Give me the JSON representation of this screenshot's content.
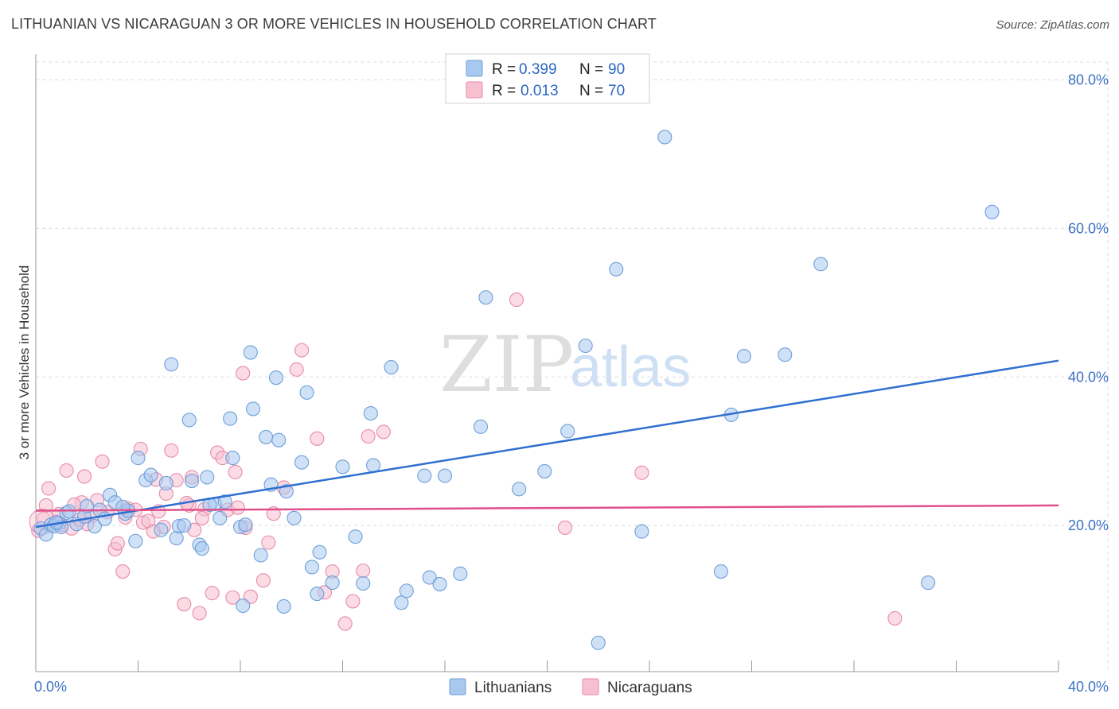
{
  "title": "LITHUANIAN VS NICARAGUAN 3 OR MORE VEHICLES IN HOUSEHOLD CORRELATION CHART",
  "source": "Source: ZipAtlas.com",
  "watermark": {
    "zip": "ZIP",
    "atlas": "atlas"
  },
  "stats": [
    {
      "r_label": "R = ",
      "r_value": "0.399",
      "n_label": "N = ",
      "n_value": "90"
    },
    {
      "r_label": "R = ",
      "r_value": "0.013",
      "n_label": "N = ",
      "n_value": "70"
    }
  ],
  "chart_data": {
    "type": "scatter",
    "title": "LITHUANIAN VS NICARAGUAN 3 OR MORE VEHICLES IN HOUSEHOLD CORRELATION CHART",
    "xlabel": "",
    "ylabel": "3 or more Vehicles in Household",
    "xlim": [
      0,
      40
    ],
    "ylim": [
      0,
      80
    ],
    "x_tick_labels": [
      "0.0%",
      "40.0%"
    ],
    "y_ticks": [
      20,
      40,
      60,
      80
    ],
    "y_tick_labels": [
      "20.0%",
      "40.0%",
      "60.0%",
      "80.0%"
    ],
    "grid": true,
    "legend_position": "bottom-center",
    "series": [
      {
        "name": "Lithuanians",
        "color": "#a8c8f0",
        "edge_color": "#6f9fd8",
        "trend_color": "#2e6fd0",
        "trend": {
          "x": [
            0,
            40
          ],
          "y": [
            19.8,
            42.2
          ]
        },
        "points": [
          [
            0.2,
            19.6
          ],
          [
            0.4,
            18.8
          ],
          [
            0.6,
            20.1
          ],
          [
            0.7,
            19.9
          ],
          [
            0.9,
            20.3
          ],
          [
            1.2,
            21.7
          ],
          [
            1.3,
            21.9
          ],
          [
            1.6,
            20.2
          ],
          [
            1.9,
            21.2
          ],
          [
            2.0,
            22.6
          ],
          [
            2.3,
            19.9
          ],
          [
            2.5,
            22.1
          ],
          [
            2.9,
            24.1
          ],
          [
            3.1,
            23.1
          ],
          [
            3.5,
            21.6
          ],
          [
            3.6,
            22.0
          ],
          [
            3.9,
            17.9
          ],
          [
            4.0,
            29.1
          ],
          [
            4.3,
            26.1
          ],
          [
            4.5,
            26.8
          ],
          [
            4.9,
            19.4
          ],
          [
            5.1,
            25.7
          ],
          [
            5.3,
            41.7
          ],
          [
            5.5,
            18.3
          ],
          [
            5.6,
            19.9
          ],
          [
            6.0,
            34.2
          ],
          [
            6.1,
            26.0
          ],
          [
            6.4,
            17.4
          ],
          [
            6.5,
            16.9
          ],
          [
            6.7,
            26.5
          ],
          [
            7.0,
            22.9
          ],
          [
            7.2,
            21.0
          ],
          [
            7.4,
            23.2
          ],
          [
            7.6,
            34.4
          ],
          [
            7.7,
            29.1
          ],
          [
            8.0,
            19.8
          ],
          [
            8.1,
            9.2
          ],
          [
            8.4,
            43.3
          ],
          [
            8.5,
            35.7
          ],
          [
            8.8,
            16.0
          ],
          [
            9.0,
            31.9
          ],
          [
            9.2,
            25.5
          ],
          [
            9.4,
            39.9
          ],
          [
            9.5,
            31.5
          ],
          [
            9.7,
            9.1
          ],
          [
            9.8,
            24.6
          ],
          [
            10.1,
            21.0
          ],
          [
            10.4,
            28.5
          ],
          [
            10.6,
            37.9
          ],
          [
            10.8,
            14.4
          ],
          [
            11.0,
            10.8
          ],
          [
            11.1,
            16.4
          ],
          [
            11.6,
            12.3
          ],
          [
            12.0,
            27.9
          ],
          [
            12.5,
            18.5
          ],
          [
            12.8,
            12.2
          ],
          [
            13.1,
            35.1
          ],
          [
            13.2,
            28.1
          ],
          [
            13.9,
            41.3
          ],
          [
            14.3,
            9.6
          ],
          [
            14.5,
            11.2
          ],
          [
            15.2,
            26.7
          ],
          [
            15.4,
            13.0
          ],
          [
            15.8,
            12.1
          ],
          [
            16.0,
            26.7
          ],
          [
            16.6,
            13.5
          ],
          [
            17.4,
            33.3
          ],
          [
            17.6,
            50.7
          ],
          [
            18.9,
            24.9
          ],
          [
            19.9,
            27.3
          ],
          [
            20.8,
            32.7
          ],
          [
            21.5,
            44.2
          ],
          [
            22.0,
            4.2
          ],
          [
            22.7,
            54.5
          ],
          [
            23.7,
            19.2
          ],
          [
            24.6,
            72.3
          ],
          [
            26.8,
            13.8
          ],
          [
            27.2,
            34.9
          ],
          [
            27.7,
            42.8
          ],
          [
            29.3,
            43.0
          ],
          [
            30.7,
            55.2
          ],
          [
            34.9,
            12.3
          ],
          [
            37.4,
            62.2
          ],
          [
            1.0,
            19.8
          ],
          [
            2.7,
            20.9
          ],
          [
            5.8,
            20.0
          ],
          [
            8.2,
            20.1
          ],
          [
            3.4,
            22.5
          ],
          [
            6.8,
            22.8
          ],
          [
            0.8,
            20.4
          ]
        ]
      },
      {
        "name": "Nicaraguans",
        "color": "#f7c0d0",
        "edge_color": "#e88aa8",
        "trend_color": "#e0508a",
        "trend": {
          "x": [
            0,
            40
          ],
          "y": [
            22.0,
            22.7
          ]
        },
        "points": [
          [
            0.1,
            19.3
          ],
          [
            0.3,
            20.9
          ],
          [
            0.4,
            22.7
          ],
          [
            0.5,
            25.0
          ],
          [
            0.8,
            20.5
          ],
          [
            1.0,
            20.1
          ],
          [
            1.2,
            27.4
          ],
          [
            1.4,
            19.6
          ],
          [
            1.7,
            20.8
          ],
          [
            1.8,
            23.1
          ],
          [
            1.9,
            26.6
          ],
          [
            2.2,
            21.3
          ],
          [
            2.4,
            23.4
          ],
          [
            2.6,
            28.6
          ],
          [
            2.8,
            21.8
          ],
          [
            3.1,
            16.8
          ],
          [
            3.2,
            17.6
          ],
          [
            3.4,
            13.8
          ],
          [
            3.6,
            22.3
          ],
          [
            3.9,
            22.1
          ],
          [
            4.1,
            30.3
          ],
          [
            4.2,
            20.4
          ],
          [
            4.4,
            20.6
          ],
          [
            4.7,
            26.2
          ],
          [
            4.8,
            21.9
          ],
          [
            5.0,
            19.8
          ],
          [
            5.1,
            24.3
          ],
          [
            5.3,
            30.1
          ],
          [
            5.5,
            26.1
          ],
          [
            5.8,
            9.4
          ],
          [
            6.0,
            22.7
          ],
          [
            6.1,
            26.5
          ],
          [
            6.2,
            19.4
          ],
          [
            6.4,
            8.2
          ],
          [
            6.6,
            22.2
          ],
          [
            6.9,
            10.9
          ],
          [
            7.1,
            29.8
          ],
          [
            7.3,
            29.1
          ],
          [
            7.5,
            22.1
          ],
          [
            7.7,
            10.3
          ],
          [
            7.8,
            27.2
          ],
          [
            8.1,
            40.5
          ],
          [
            8.2,
            19.7
          ],
          [
            8.4,
            10.4
          ],
          [
            8.9,
            12.6
          ],
          [
            9.1,
            17.7
          ],
          [
            9.7,
            25.1
          ],
          [
            10.2,
            41.0
          ],
          [
            10.4,
            43.6
          ],
          [
            11.0,
            31.7
          ],
          [
            11.3,
            11.0
          ],
          [
            11.6,
            13.8
          ],
          [
            12.1,
            6.8
          ],
          [
            12.4,
            9.8
          ],
          [
            12.8,
            13.9
          ],
          [
            13.0,
            32.0
          ],
          [
            13.6,
            32.6
          ],
          [
            18.8,
            50.4
          ],
          [
            20.7,
            19.7
          ],
          [
            23.7,
            27.1
          ],
          [
            33.6,
            7.5
          ],
          [
            0.9,
            21.5
          ],
          [
            2.0,
            20.2
          ],
          [
            3.5,
            21.1
          ],
          [
            5.9,
            23.0
          ],
          [
            7.9,
            22.4
          ],
          [
            9.3,
            21.6
          ],
          [
            1.5,
            22.8
          ],
          [
            4.6,
            19.2
          ],
          [
            6.5,
            21.0
          ]
        ]
      }
    ]
  }
}
